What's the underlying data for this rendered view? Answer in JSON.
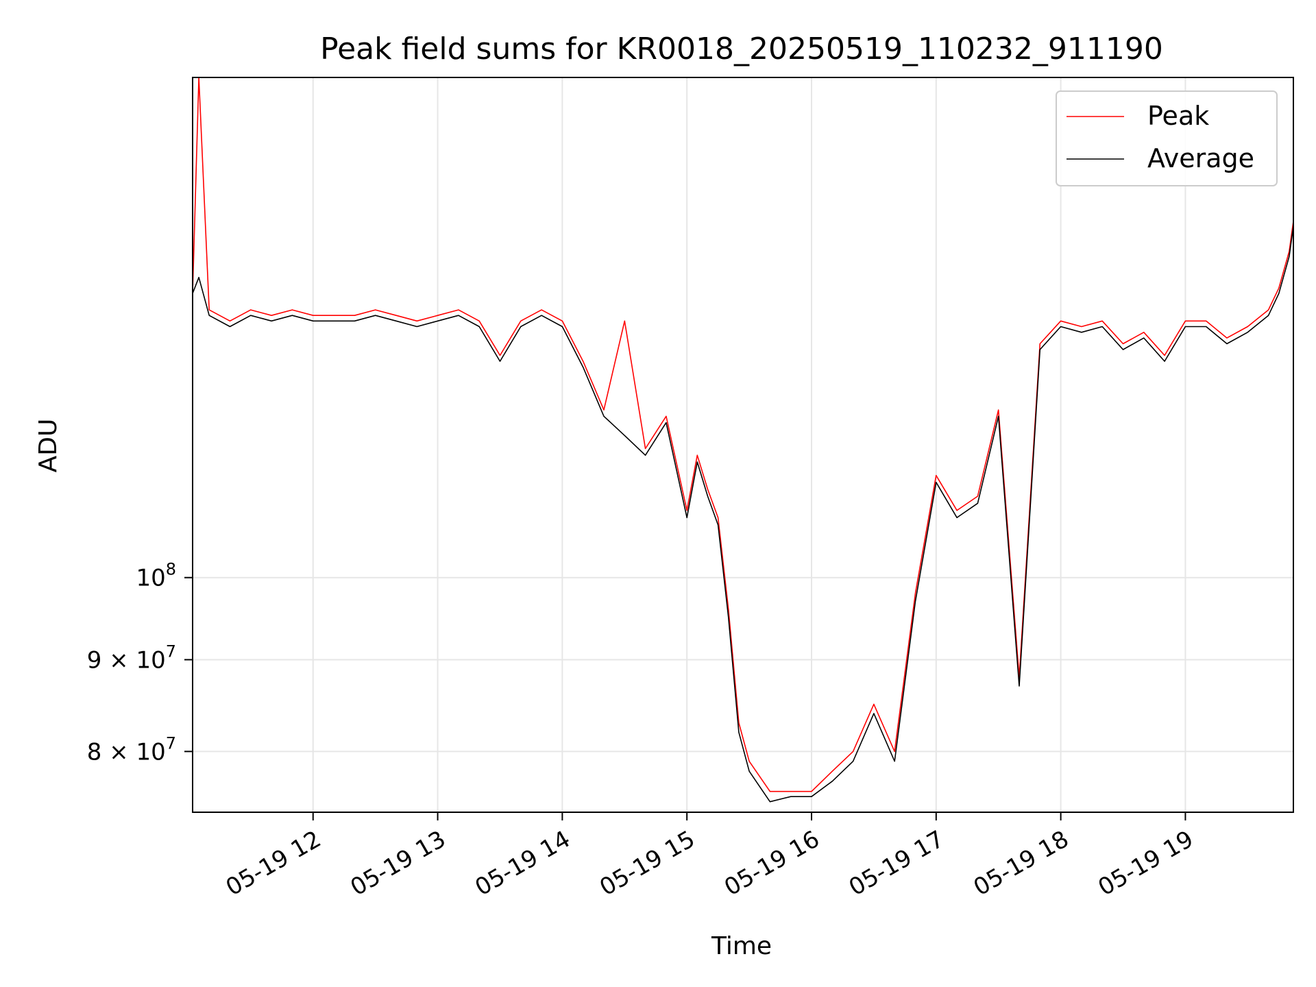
{
  "chart_data": {
    "type": "line",
    "title": "Peak field sums for KR0018_20250519_110232_911190",
    "xlabel": "Time",
    "ylabel": "ADU",
    "yscale": "log",
    "ylim": [
      74000000,
      190000000
    ],
    "xlim": [
      "05-19 11:02",
      "05-19 19:52"
    ],
    "grid": true,
    "legend_position": "top-right",
    "x_ticks": [
      "05-19 12",
      "05-19 13",
      "05-19 14",
      "05-19 15",
      "05-19 16",
      "05-19 17",
      "05-19 18",
      "05-19 19"
    ],
    "y_ticks": [
      {
        "value": 80000000,
        "mantissa": "8",
        "exp": "7"
      },
      {
        "value": 90000000,
        "mantissa": "9",
        "exp": "7"
      },
      {
        "value": 100000000,
        "mantissa": "",
        "exp": "8"
      }
    ],
    "x": [
      "05-19 11:02",
      "05-19 11:05",
      "05-19 11:10",
      "05-19 11:20",
      "05-19 11:30",
      "05-19 11:40",
      "05-19 11:50",
      "05-19 12:00",
      "05-19 12:10",
      "05-19 12:20",
      "05-19 12:30",
      "05-19 12:40",
      "05-19 12:50",
      "05-19 13:00",
      "05-19 13:10",
      "05-19 13:20",
      "05-19 13:30",
      "05-19 13:40",
      "05-19 13:50",
      "05-19 14:00",
      "05-19 14:10",
      "05-19 14:20",
      "05-19 14:30",
      "05-19 14:40",
      "05-19 14:50",
      "05-19 15:00",
      "05-19 15:05",
      "05-19 15:10",
      "05-19 15:15",
      "05-19 15:20",
      "05-19 15:25",
      "05-19 15:30",
      "05-19 15:40",
      "05-19 15:50",
      "05-19 16:00",
      "05-19 16:10",
      "05-19 16:20",
      "05-19 16:30",
      "05-19 16:40",
      "05-19 16:50",
      "05-19 17:00",
      "05-19 17:10",
      "05-19 17:20",
      "05-19 17:30",
      "05-19 17:40",
      "05-19 17:50",
      "05-19 18:00",
      "05-19 18:10",
      "05-19 18:20",
      "05-19 18:30",
      "05-19 18:40",
      "05-19 18:50",
      "05-19 19:00",
      "05-19 19:10",
      "05-19 19:20",
      "05-19 19:30",
      "05-19 19:40",
      "05-19 19:45",
      "05-19 19:50",
      "05-19 19:52"
    ],
    "series": [
      {
        "name": "Peak",
        "color": "#ff0000",
        "values": [
          144000000,
          190000000,
          141000000,
          139000000,
          141000000,
          140000000,
          141000000,
          140000000,
          140000000,
          140000000,
          141000000,
          140000000,
          139000000,
          140000000,
          141000000,
          139000000,
          133000000,
          139000000,
          141000000,
          139000000,
          132000000,
          124000000,
          139000000,
          118000000,
          123000000,
          109000000,
          117000000,
          112000000,
          108000000,
          96000000,
          83000000,
          79000000,
          76000000,
          76000000,
          76000000,
          78000000,
          80000000,
          85000000,
          80000000,
          98000000,
          114000000,
          109000000,
          111000000,
          124000000,
          88000000,
          135000000,
          139000000,
          138000000,
          139000000,
          135000000,
          137000000,
          133000000,
          139000000,
          139000000,
          136000000,
          138000000,
          141000000,
          145000000,
          152000000,
          158000000
        ]
      },
      {
        "name": "Average",
        "color": "#000000",
        "values": [
          144000000,
          147000000,
          140000000,
          138000000,
          140000000,
          139000000,
          140000000,
          139000000,
          139000000,
          139000000,
          140000000,
          139000000,
          138000000,
          139000000,
          140000000,
          138000000,
          132000000,
          138000000,
          140000000,
          138000000,
          131000000,
          123000000,
          120000000,
          117000000,
          122000000,
          108000000,
          116000000,
          111000000,
          107000000,
          95000000,
          82000000,
          78000000,
          75000000,
          75500000,
          75500000,
          77000000,
          79000000,
          84000000,
          79000000,
          97000000,
          113000000,
          108000000,
          110000000,
          123000000,
          87000000,
          134000000,
          138000000,
          137000000,
          138000000,
          134000000,
          136000000,
          132000000,
          138000000,
          138000000,
          135000000,
          137000000,
          140000000,
          144000000,
          151000000,
          157000000
        ]
      }
    ]
  }
}
